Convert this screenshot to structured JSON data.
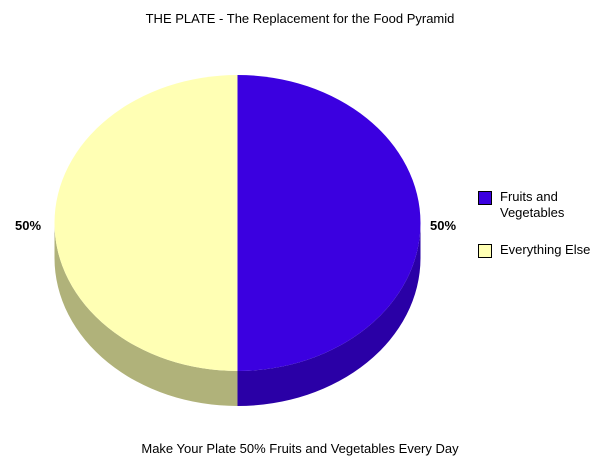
{
  "chart_data": {
    "type": "pie",
    "title": "THE PLATE - The Replacement for the Food Pyramid",
    "caption": "Make Your Plate 50% Fruits and Vegetables Every Day",
    "style": "3d",
    "legend_position": "right",
    "slices": [
      {
        "label": "Fruits and Vegetables",
        "value": 50,
        "display": "50%",
        "color": "#3b00e0",
        "side_color": "#2a00a6"
      },
      {
        "label": "Everything Else",
        "value": 50,
        "display": "50%",
        "color": "#ffffb4",
        "side_color": "#b0b27a"
      }
    ]
  }
}
